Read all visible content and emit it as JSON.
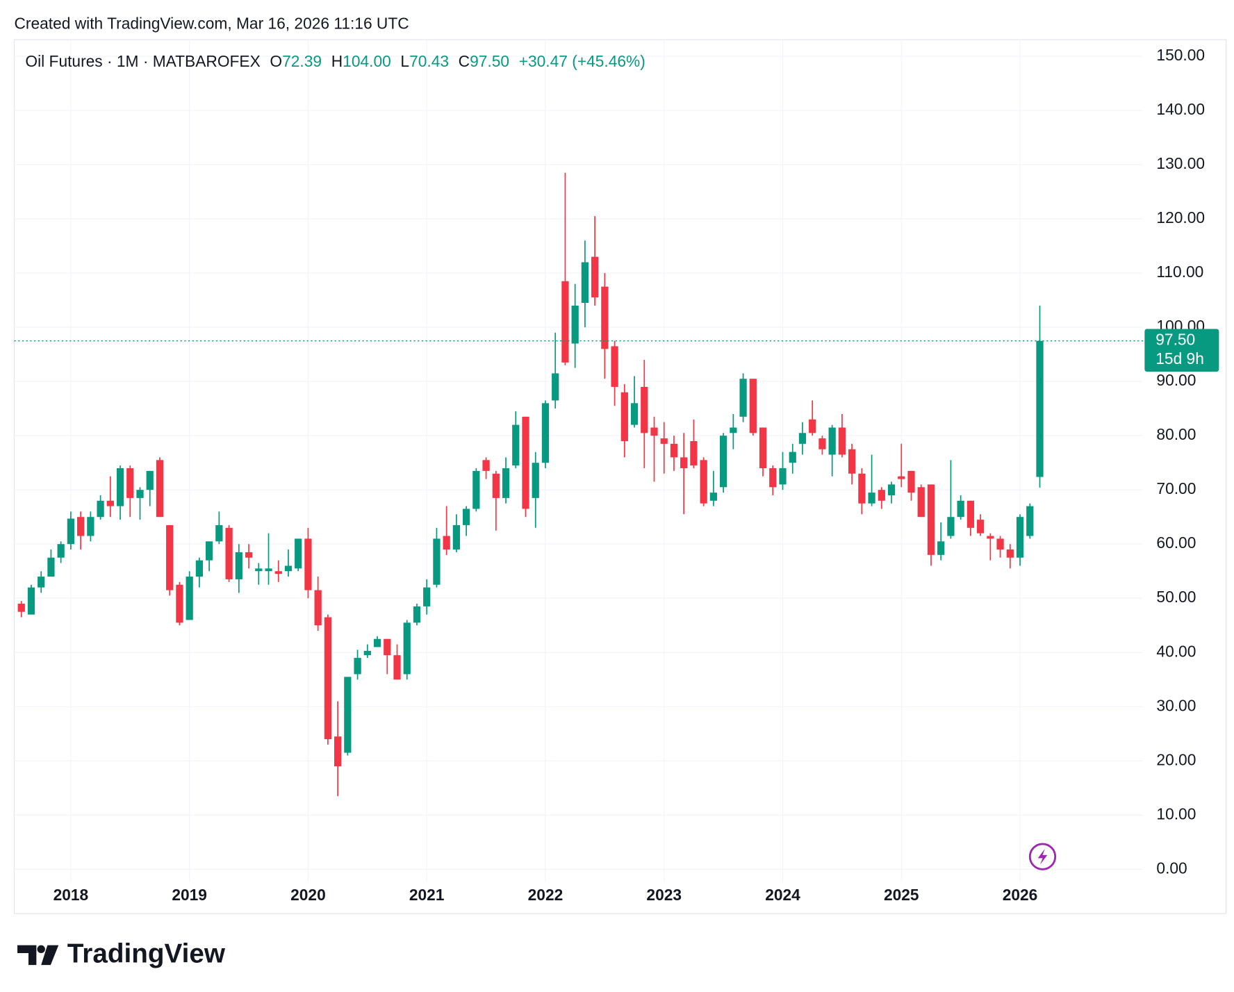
{
  "created": "Created with TradingView.com, Mar 16, 2026 11:16 UTC",
  "logo": "TradingView",
  "chart_data": {
    "type": "candlestick",
    "legend": {
      "symbol": "Oil Futures · 1M · MATBAROFEX",
      "items": [
        {
          "label": "O",
          "value": "72.39"
        },
        {
          "label": "H",
          "value": "104.00"
        },
        {
          "label": "L",
          "value": "70.43"
        },
        {
          "label": "C",
          "value": "97.50"
        }
      ],
      "change": "+30.47 (+45.46%)"
    },
    "last_price_label": "97.50",
    "countdown": "15d 9h",
    "up_color": "#089981",
    "down_color": "#f23645",
    "grid": true,
    "categories": [
      null,
      null,
      null,
      null,
      null,
      "2018",
      null,
      null,
      null,
      null,
      null,
      null,
      null,
      null,
      null,
      null,
      null,
      "2019",
      null,
      null,
      null,
      null,
      null,
      null,
      null,
      null,
      null,
      null,
      null,
      "2020",
      null,
      null,
      null,
      null,
      null,
      null,
      null,
      null,
      null,
      null,
      null,
      "2021",
      null,
      null,
      null,
      null,
      null,
      null,
      null,
      null,
      null,
      null,
      null,
      "2022",
      null,
      null,
      null,
      null,
      null,
      null,
      null,
      null,
      null,
      null,
      null,
      "2023",
      null,
      null,
      null,
      null,
      null,
      null,
      null,
      null,
      null,
      null,
      null,
      "2024",
      null,
      null,
      null,
      null,
      null,
      null,
      null,
      null,
      null,
      null,
      null,
      "2025",
      null,
      null,
      null,
      null,
      null,
      null,
      null,
      null,
      null,
      null,
      null,
      "2026",
      null,
      null
    ],
    "open": [
      49,
      47,
      52,
      54,
      57.5,
      60,
      65,
      61.5,
      65,
      68,
      67,
      74,
      68.5,
      70,
      75.5,
      63.5,
      52.5,
      46,
      54,
      57,
      60.5,
      63,
      53.5,
      58.5,
      55,
      55,
      55,
      55,
      55.5,
      61,
      51.5,
      46.5,
      24.5,
      21.5,
      36,
      39.5,
      41,
      42.5,
      39.5,
      36,
      45.5,
      48.5,
      52.5,
      61.5,
      59,
      63.5,
      66.5,
      75.5,
      73,
      68.5,
      74.5,
      83.5,
      68.5,
      75,
      86.5,
      108.5,
      97,
      104.5,
      113,
      107.5,
      96.5,
      88,
      82,
      89,
      81.5,
      79.5,
      78.5,
      76,
      79,
      75.5,
      68,
      70.5,
      80.5,
      83.5,
      90.5,
      81.5,
      74,
      71,
      75,
      78.5,
      83,
      79.5,
      76.5,
      81.5,
      77.5,
      73,
      67.5,
      70,
      69,
      72.5,
      73.5,
      70.5,
      71,
      58,
      61.5,
      65,
      68,
      64.5,
      61.5,
      61,
      59,
      57.5,
      61.5,
      72.39
    ],
    "high": [
      49.5,
      52.5,
      55,
      59,
      60.5,
      66,
      66,
      66,
      69,
      72.5,
      74.5,
      74.5,
      70.5,
      73.5,
      76,
      63.5,
      53,
      55,
      57.5,
      60.5,
      66,
      63.5,
      60,
      60,
      56.5,
      62,
      57,
      59,
      61,
      63,
      54,
      47,
      31,
      35.5,
      40.5,
      41.5,
      43,
      42.5,
      41.5,
      46,
      49,
      53.5,
      63,
      67,
      65.5,
      67,
      74,
      76,
      73.5,
      76,
      84.5,
      83.5,
      77,
      86.5,
      99,
      128.5,
      108,
      116,
      120.5,
      110,
      97.5,
      89.5,
      91,
      94,
      83.5,
      82.5,
      80,
      80.5,
      83,
      76,
      73.5,
      80.5,
      84,
      91.5,
      90.5,
      81.5,
      74.5,
      77,
      78.5,
      82.5,
      86.5,
      80,
      82,
      84,
      78.5,
      74,
      76.5,
      70.5,
      71.5,
      78.5,
      73.5,
      71,
      71,
      64,
      75.5,
      69,
      68,
      65.5,
      62,
      61.5,
      60,
      65.5,
      67.5,
      104
    ],
    "low": [
      46.5,
      47,
      51,
      54,
      56.5,
      59,
      59,
      60.5,
      64.5,
      65,
      64.5,
      65,
      64.5,
      67,
      65,
      50.5,
      45,
      46,
      52,
      55,
      60,
      53,
      51,
      55.5,
      52.5,
      52.5,
      53,
      54,
      55,
      50,
      44,
      23,
      13.5,
      21,
      35,
      39,
      41,
      36,
      35,
      35,
      45,
      47,
      52,
      58,
      58.5,
      61.5,
      66,
      72,
      62.5,
      67.5,
      74,
      65,
      63,
      74,
      85,
      93,
      92.5,
      100,
      104,
      90.5,
      85.5,
      76,
      81.5,
      74,
      71.5,
      73,
      73.5,
      65.5,
      74,
      67,
      67,
      69.5,
      77.5,
      82.5,
      80,
      72.5,
      69,
      70,
      73,
      76.5,
      80,
      76.5,
      72.5,
      76,
      71,
      65.5,
      67,
      66.5,
      67.5,
      70.5,
      68,
      65,
      56,
      57,
      61,
      64.5,
      61.5,
      61.5,
      57,
      57.5,
      55.5,
      56,
      61,
      70.43
    ],
    "close": [
      47.5,
      52,
      54,
      57.5,
      60,
      64.7,
      61.5,
      65,
      68,
      67,
      74,
      68.5,
      70,
      73.5,
      65,
      51.5,
      45.5,
      54,
      57,
      60.5,
      63.5,
      53.5,
      58.5,
      57.5,
      55.5,
      55.5,
      54.5,
      56,
      61,
      51.5,
      45,
      24,
      19,
      35.5,
      39,
      40.3,
      42.5,
      39.5,
      35,
      45.5,
      48.5,
      52,
      61,
      59,
      63.5,
      66.5,
      73.5,
      73.5,
      68.5,
      74,
      82,
      66.5,
      75,
      86,
      91.5,
      93.5,
      104,
      112,
      105.5,
      96,
      89,
      79,
      86,
      80.5,
      80,
      78.5,
      76,
      74,
      74.5,
      67.5,
      69.5,
      80,
      81.5,
      90.5,
      80.5,
      74,
      70.5,
      74,
      77,
      80.5,
      80.5,
      77.5,
      81.5,
      76.5,
      73,
      67.5,
      69.5,
      68,
      71,
      72,
      69.5,
      65,
      58,
      60.5,
      65,
      68,
      63,
      62,
      61,
      59,
      57.5,
      65,
      67,
      97.5
    ],
    "ylim": [
      0,
      150
    ],
    "yticks": [
      {
        "value": 0,
        "label": "0.00"
      },
      {
        "value": 10,
        "label": "10.00"
      },
      {
        "value": 20,
        "label": "20.00"
      },
      {
        "value": 30,
        "label": "30.00"
      },
      {
        "value": 40,
        "label": "40.00"
      },
      {
        "value": 50,
        "label": "50.00"
      },
      {
        "value": 60,
        "label": "60.00"
      },
      {
        "value": 70,
        "label": "70.00"
      },
      {
        "value": 80,
        "label": "80.00"
      },
      {
        "value": 90,
        "label": "90.00"
      },
      {
        "value": 100,
        "label": "100.00"
      },
      {
        "value": 110,
        "label": "110.00"
      },
      {
        "value": 120,
        "label": "120.00"
      },
      {
        "value": 130,
        "label": "130.00"
      },
      {
        "value": 140,
        "label": "140.00"
      },
      {
        "value": 150,
        "label": "150.00"
      }
    ]
  }
}
